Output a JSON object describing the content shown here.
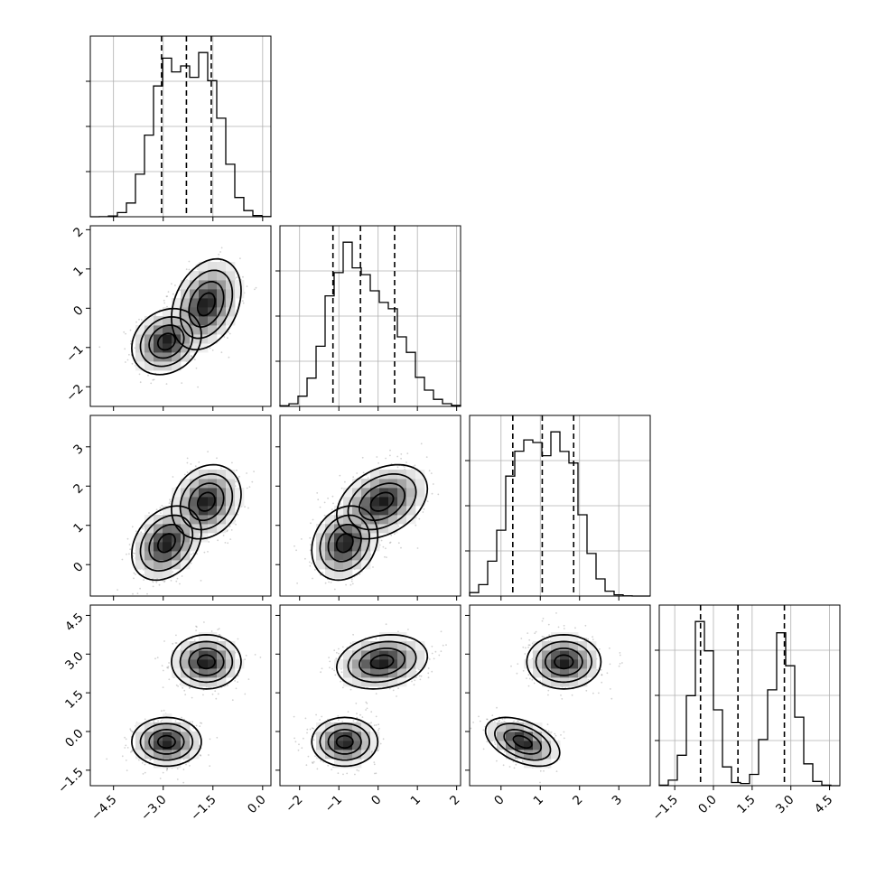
{
  "chart_data": {
    "type": "corner",
    "parameters": [
      {
        "index": 0,
        "range": [
          -5.2,
          0.25
        ],
        "ticks": [
          -4.5,
          -3.0,
          -1.5,
          0.0
        ],
        "tick_labels": [
          "−4.5",
          "−3.0",
          "−1.5",
          "0.0"
        ],
        "quantiles": [
          -3.05,
          -2.3,
          -1.55
        ],
        "modes": [
          {
            "mean": -2.9,
            "sd": 0.5,
            "w": 0.5
          },
          {
            "mean": -1.7,
            "sd": 0.5,
            "w": 0.5
          }
        ]
      },
      {
        "index": 1,
        "range": [
          -2.5,
          2.1
        ],
        "ticks": [
          -2,
          -1,
          0,
          1,
          2
        ],
        "tick_labels": [
          "−2",
          "−1",
          "0",
          "1",
          "2"
        ],
        "quantiles": [
          -1.15,
          -0.45,
          0.42
        ],
        "modes": [
          {
            "mean": -0.9,
            "sd": 0.45,
            "w": 0.5
          },
          {
            "mean": 0.15,
            "sd": 0.6,
            "w": 0.5
          }
        ]
      },
      {
        "index": 2,
        "range": [
          -0.8,
          3.8
        ],
        "ticks": [
          0,
          1,
          2,
          3
        ],
        "tick_labels": [
          "0",
          "1",
          "2",
          "3"
        ],
        "quantiles": [
          0.3,
          1.05,
          1.85
        ],
        "modes": [
          {
            "mean": 0.55,
            "sd": 0.45,
            "w": 0.5
          },
          {
            "mean": 1.6,
            "sd": 0.45,
            "w": 0.5
          }
        ]
      },
      {
        "index": 3,
        "range": [
          -2.1,
          4.9
        ],
        "ticks": [
          -1.5,
          0.0,
          1.5,
          3.0,
          4.5
        ],
        "tick_labels": [
          "−1.5",
          "0.0",
          "1.5",
          "3.0",
          "4.5"
        ],
        "quantiles": [
          -0.5,
          0.95,
          2.75
        ],
        "modes": [
          {
            "mean": -0.4,
            "sd": 0.45,
            "w": 0.5
          },
          {
            "mean": 2.7,
            "sd": 0.5,
            "w": 0.5
          }
        ]
      }
    ],
    "clusters": [
      {
        "mean": [
          -2.9,
          -0.85,
          0.55,
          -0.4
        ],
        "sd": [
          0.5,
          0.4,
          0.45,
          0.45
        ],
        "corr": {
          "0-1": 0.2,
          "0-2": 0.3,
          "0-3": 0.0,
          "1-2": 0.2,
          "1-3": 0.0,
          "2-3": -0.45
        }
      },
      {
        "mean": [
          -1.7,
          0.1,
          1.6,
          2.7
        ],
        "sd": [
          0.5,
          0.55,
          0.45,
          0.5
        ],
        "corr": {
          "0-1": 0.3,
          "0-2": 0.2,
          "0-3": 0.0,
          "1-2": 0.35,
          "1-3": 0.2,
          "2-3": 0.0
        }
      }
    ],
    "contour_levels_sigma": [
      0.5,
      1.0,
      1.5,
      2.0
    ],
    "grid": true
  }
}
